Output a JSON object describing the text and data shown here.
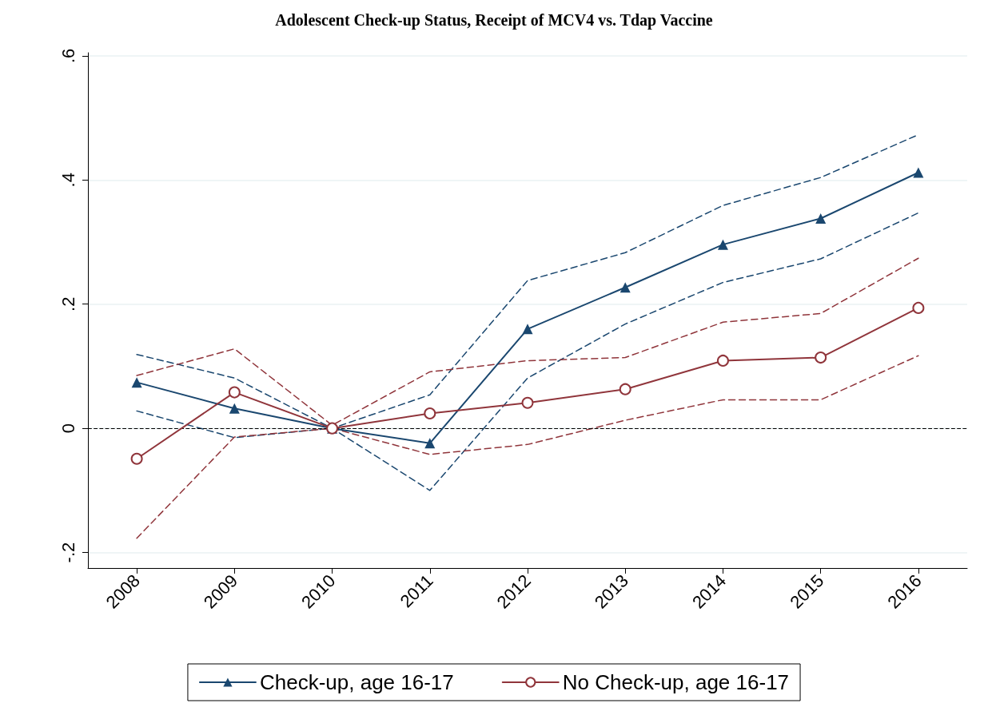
{
  "chart_data": {
    "type": "line",
    "title": "Adolescent Check-up Status, Receipt of MCV4 vs. Tdap Vaccine",
    "categories": [
      "2008",
      "2009",
      "2010",
      "2011",
      "2012",
      "2013",
      "2014",
      "2015",
      "2016"
    ],
    "series": [
      {
        "name": "Check-up, age 16-17",
        "color": "#1a476f",
        "marker": "triangle",
        "line_style": "solid",
        "values": [
          0.074,
          0.032,
          0,
          -0.024,
          0.16,
          0.227,
          0.296,
          0.338,
          0.412
        ]
      },
      {
        "name": "No Check-up, age 16-17",
        "color": "#90353b",
        "marker": "circle",
        "line_style": "solid",
        "values": [
          -0.049,
          0.058,
          0,
          0.024,
          0.041,
          0.063,
          0.109,
          0.114,
          0.194
        ]
      },
      {
        "color": "#1a476f",
        "marker": "none",
        "line_style": "dashed",
        "values": [
          0.028,
          -0.015,
          0,
          -0.1,
          0.081,
          0.168,
          0.235,
          0.273,
          0.347
        ]
      },
      {
        "color": "#1a476f",
        "marker": "none",
        "line_style": "dashed",
        "values": [
          0.119,
          0.081,
          0,
          0.054,
          0.238,
          0.283,
          0.359,
          0.404,
          0.473
        ]
      },
      {
        "color": "#90353b",
        "marker": "none",
        "line_style": "dashed",
        "values": [
          -0.177,
          -0.014,
          0,
          -0.042,
          -0.026,
          0.013,
          0.046,
          0.046,
          0.117
        ]
      },
      {
        "color": "#90353b",
        "marker": "none",
        "line_style": "dashed",
        "values": [
          0.085,
          0.128,
          0.005,
          0.091,
          0.109,
          0.114,
          0.171,
          0.185,
          0.274
        ]
      }
    ],
    "ylim": [
      -0.225,
      0.605
    ],
    "yticks": [
      {
        "value": -0.2,
        "label": "-.2"
      },
      {
        "value": 0,
        "label": "0"
      },
      {
        "value": 0.2,
        "label": ".2"
      },
      {
        "value": 0.4,
        "label": ".4"
      },
      {
        "value": 0.6,
        "label": ".6"
      }
    ],
    "ref_lines": [
      {
        "axis": "y",
        "value": 0,
        "color": "#000000",
        "line_style": "dashed"
      }
    ],
    "grid": "y",
    "legend": "bottom"
  }
}
